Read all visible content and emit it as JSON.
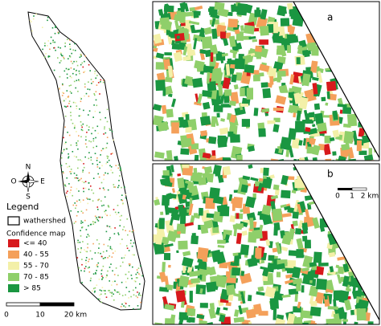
{
  "legend": {
    "title": "Legend",
    "boundary": "wathershed",
    "subtitle": "Confidence map",
    "items": [
      {
        "label": "<= 40",
        "color": "#d7191c"
      },
      {
        "label": "40 - 55",
        "color": "#f4a05a"
      },
      {
        "label": "55 - 70",
        "color": "#f3f0a8"
      },
      {
        "label": "70 - 85",
        "color": "#8fcf6a"
      },
      {
        "label": "> 85",
        "color": "#1a9641"
      }
    ]
  },
  "compass": {
    "north": "N",
    "south": "S",
    "east": "E",
    "west": "O"
  },
  "scale_main": [
    "0",
    "10",
    "20 km"
  ],
  "panels": [
    {
      "label": "a"
    },
    {
      "label": "b",
      "scale": [
        "0",
        "1",
        "2 km"
      ]
    }
  ]
}
